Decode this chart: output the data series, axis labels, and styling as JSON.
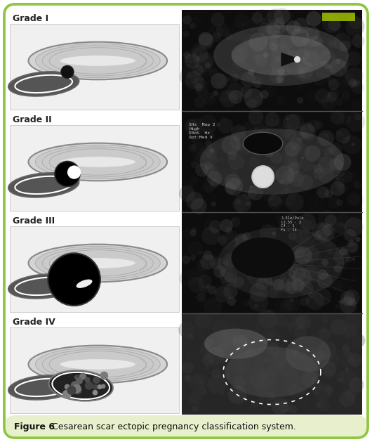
{
  "figure_label": "Figure 6",
  "caption": "Cesarean scar ectopic pregnancy classification system.",
  "border_color": "#8dc63f",
  "border_linewidth": 2.5,
  "background_color": "#ffffff",
  "caption_bg_color": "#e8efcc",
  "fig_width": 5.3,
  "fig_height": 6.29,
  "grades": [
    "Grade I",
    "Grade II",
    "Grade III",
    "Grade IV"
  ],
  "caption_fontsize": 9,
  "label_fontsize": 9,
  "dpi": 100
}
